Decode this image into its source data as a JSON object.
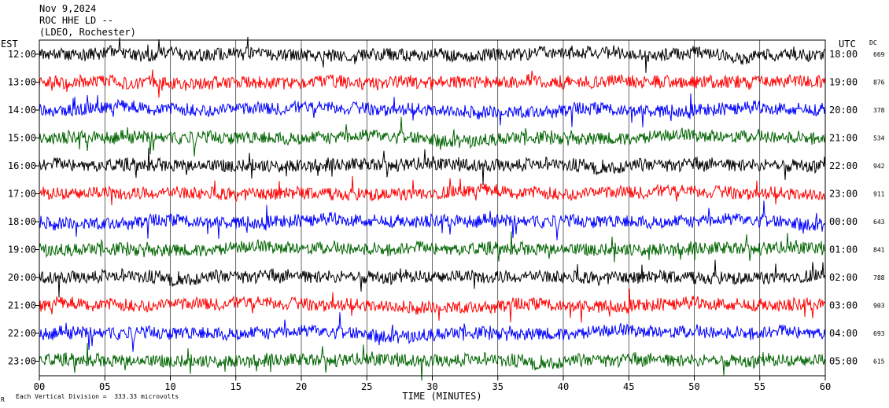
{
  "header": {
    "date": "Nov 9,2024",
    "station": "ROC HHE LD --",
    "network": "(LDEO, Rochester)"
  },
  "left_axis_label": "EST",
  "right_axis_label": "UTC",
  "dc_label": "DC",
  "footer": {
    "corner_mark": "R",
    "scale_note": "Each Vertical Division =  333.33 microvolts"
  },
  "colors": {
    "trace_cycle": [
      "#000000",
      "#ff0000",
      "#0000ff",
      "#006400"
    ],
    "grid": "#000000"
  },
  "chart_data": {
    "type": "line",
    "title": "",
    "xlabel": "TIME (MINUTES)",
    "xlim": [
      0,
      60
    ],
    "x_ticks": [
      "00",
      "05",
      "10",
      "15",
      "20",
      "25",
      "30",
      "35",
      "40",
      "45",
      "50",
      "55",
      "60"
    ],
    "rows": [
      {
        "est": "12:00",
        "utc": "18:00",
        "dc": "669"
      },
      {
        "est": "13:00",
        "utc": "19:00",
        "dc": "876"
      },
      {
        "est": "14:00",
        "utc": "20:00",
        "dc": "378"
      },
      {
        "est": "15:00",
        "utc": "21:00",
        "dc": "534"
      },
      {
        "est": "16:00",
        "utc": "22:00",
        "dc": "942"
      },
      {
        "est": "17:00",
        "utc": "23:00",
        "dc": "911"
      },
      {
        "est": "18:00",
        "utc": "00:00",
        "dc": "643"
      },
      {
        "est": "19:00",
        "utc": "01:00",
        "dc": "841"
      },
      {
        "est": "20:00",
        "utc": "02:00",
        "dc": "788"
      },
      {
        "est": "21:00",
        "utc": "03:00",
        "dc": "903"
      },
      {
        "est": "22:00",
        "utc": "04:00",
        "dc": "693"
      },
      {
        "est": "23:00",
        "utc": "05:00",
        "dc": "615"
      }
    ]
  }
}
